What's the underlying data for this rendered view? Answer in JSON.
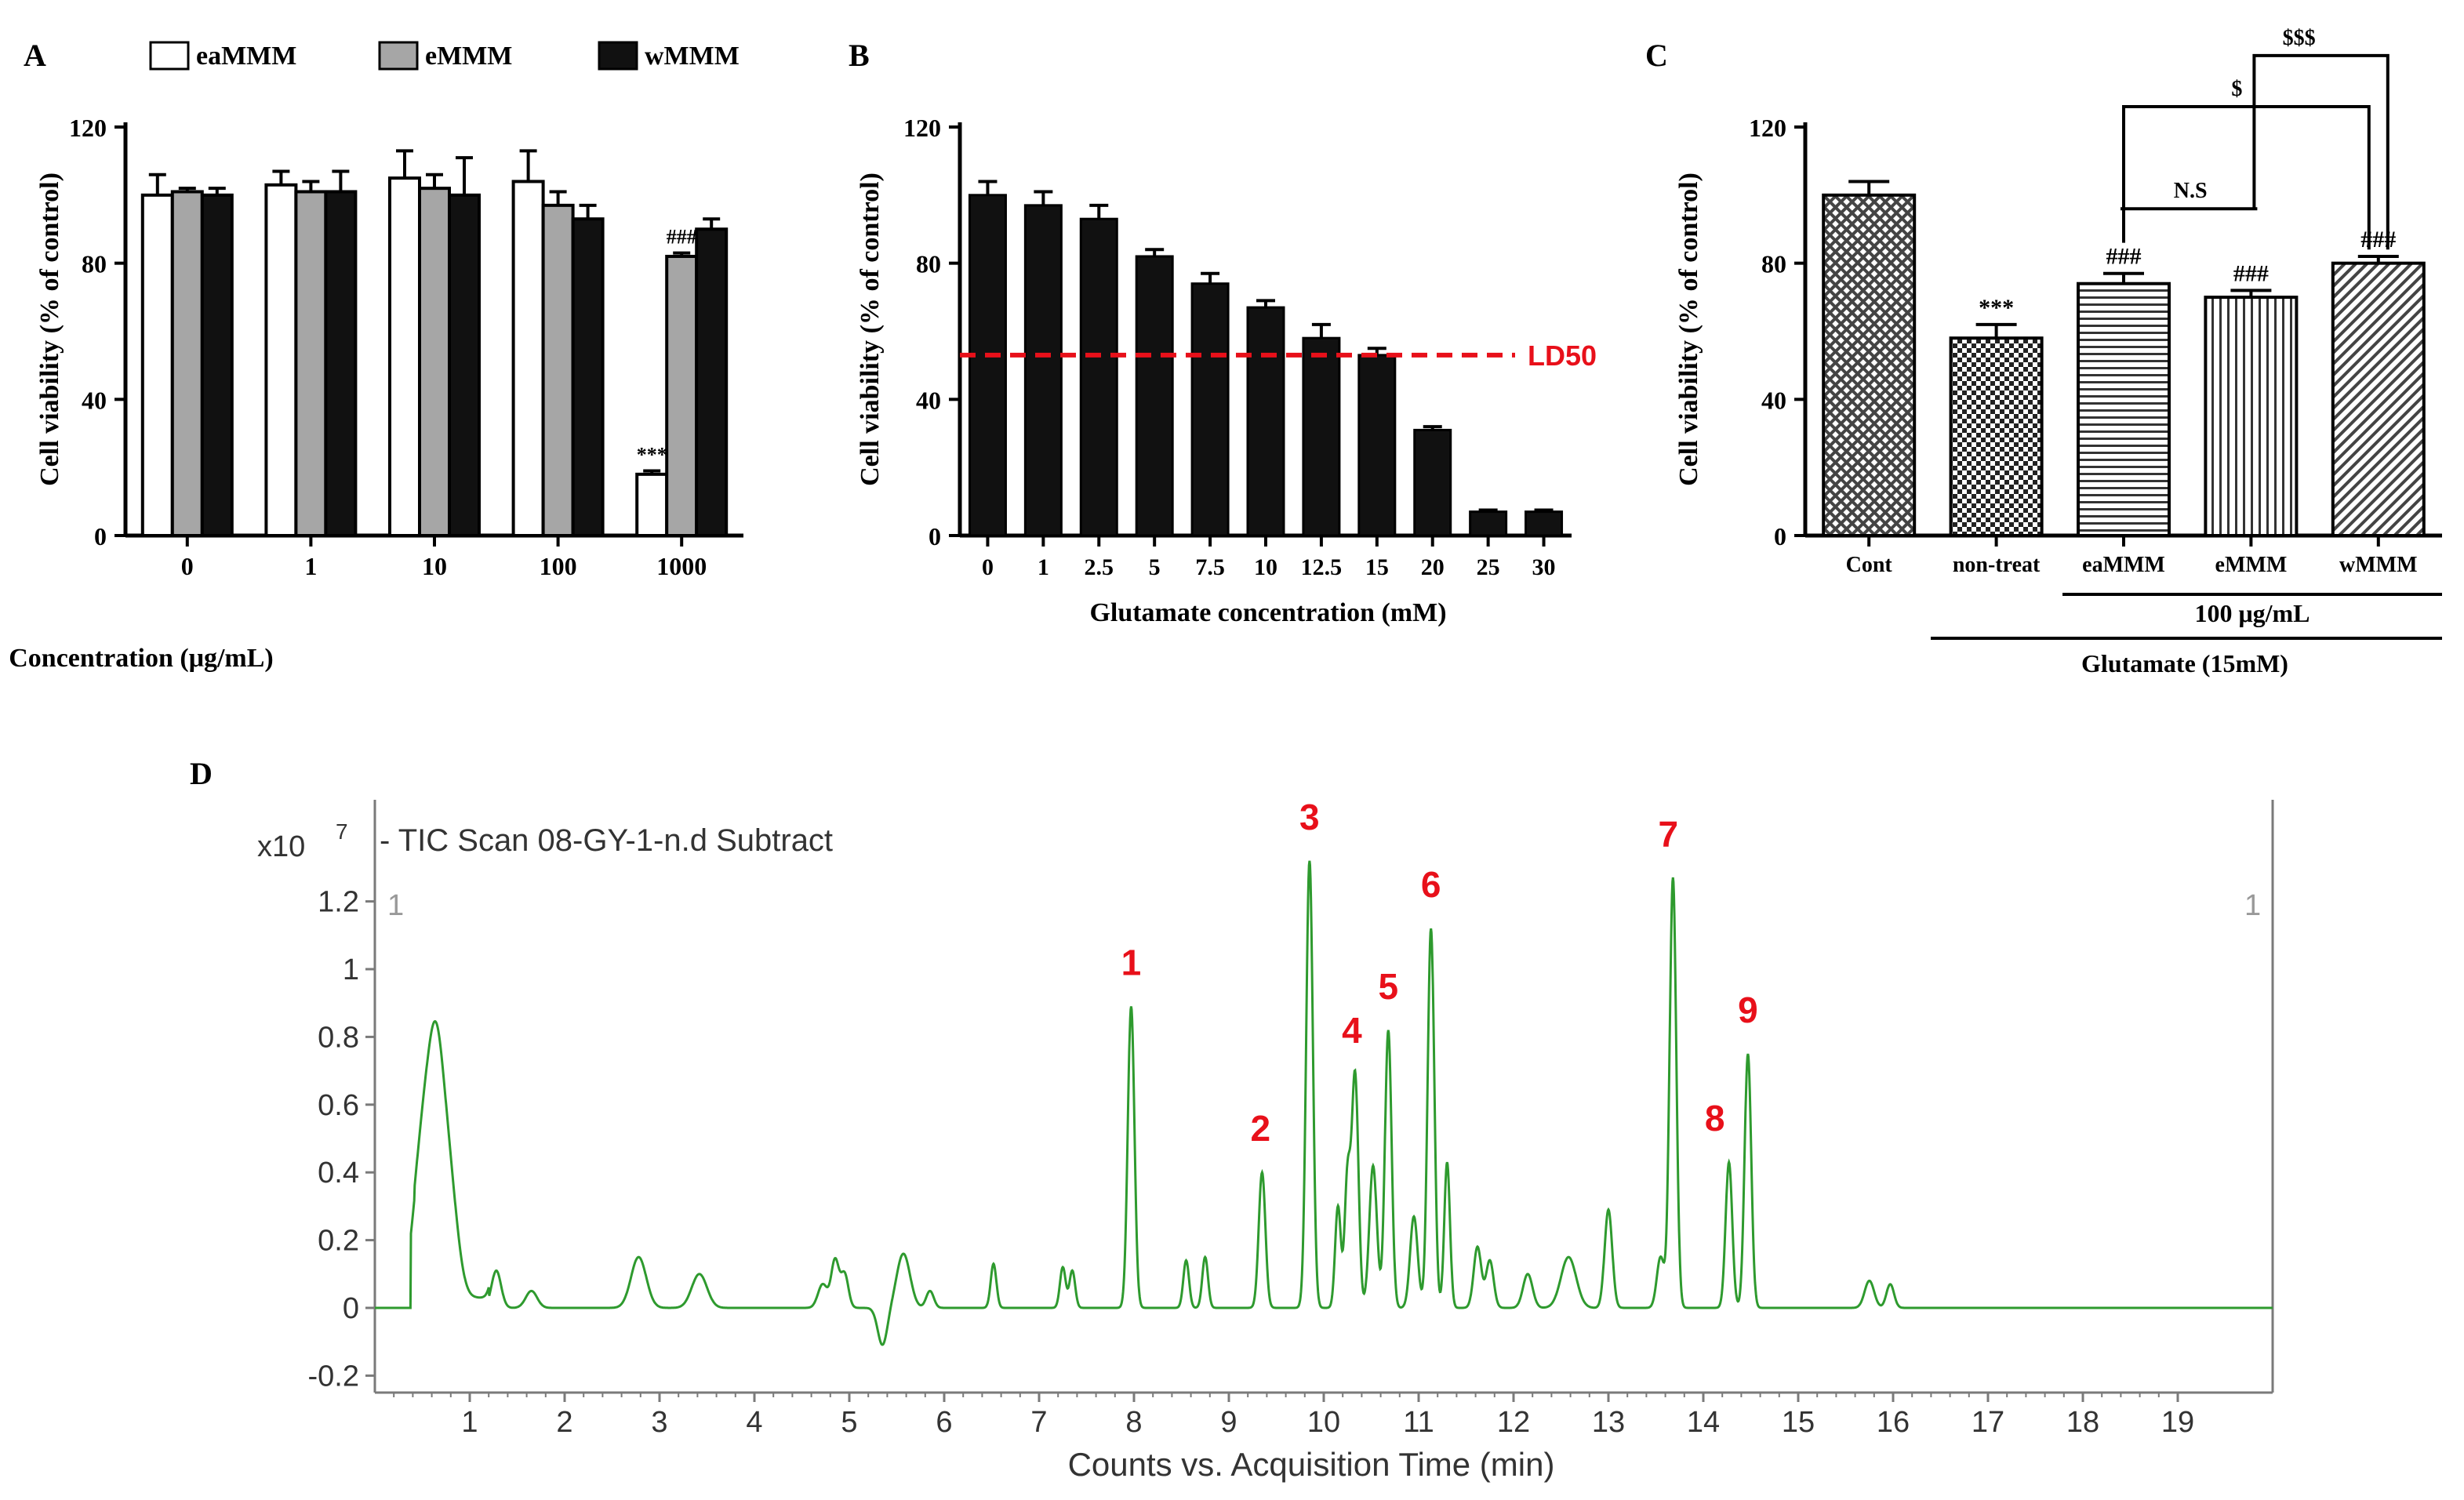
{
  "colors": {
    "white_bar": "#ffffff",
    "gray_bar": "#a6a6a6",
    "black_bar": "#111111",
    "axis": "#000000",
    "ld50": "#e8101a",
    "trace": "#2e9a2e",
    "peak_label": "#e8101a",
    "frame": "#7a7a7a"
  },
  "chart_data": [
    {
      "panel": "A",
      "type": "bar",
      "panel_label": "A",
      "categories": [
        "0",
        "1",
        "10",
        "100",
        "1000"
      ],
      "series": [
        {
          "name": "eaMMM",
          "values": [
            100,
            103,
            105,
            104,
            18
          ],
          "errors": [
            6,
            4,
            8,
            9,
            1
          ]
        },
        {
          "name": "eMMM",
          "values": [
            101,
            101,
            102,
            97,
            82
          ],
          "errors": [
            1,
            3,
            4,
            4,
            1
          ]
        },
        {
          "name": "wMMM",
          "values": [
            100,
            101,
            100,
            93,
            90
          ],
          "errors": [
            2,
            6,
            11,
            4,
            3
          ]
        }
      ],
      "annotations": [
        {
          "category": "1000",
          "series": "eaMMM",
          "text": "***"
        },
        {
          "category": "1000",
          "series": "eMMM",
          "text": "###"
        }
      ],
      "xlabel": "Concentration (μg/mL)",
      "ylabel": "Cell viability  (% of control)",
      "ylim": [
        0,
        120
      ],
      "yticks": [
        "0",
        "40",
        "80",
        "120"
      ],
      "legend": [
        "eaMMM",
        "eMMM",
        "wMMM"
      ]
    },
    {
      "panel": "B",
      "type": "bar",
      "panel_label": "B",
      "categories": [
        "0",
        "1",
        "2.5",
        "5",
        "7.5",
        "10",
        "12.5",
        "15",
        "20",
        "25",
        "30"
      ],
      "values": [
        100,
        97,
        93,
        82,
        74,
        67,
        58,
        53,
        31,
        7,
        7
      ],
      "errors": [
        4,
        4,
        4,
        2,
        3,
        2,
        4,
        2,
        1,
        0.5,
        0.5
      ],
      "reference_line": {
        "value": 53,
        "label": "LD50"
      },
      "xlabel": "Glutamate concentration (mM)",
      "ylabel": "Cell viability  (% of control)",
      "ylim": [
        0,
        120
      ],
      "yticks": [
        "0",
        "40",
        "80",
        "120"
      ]
    },
    {
      "panel": "C",
      "type": "bar",
      "panel_label": "C",
      "categories": [
        "Cont",
        "non-treat",
        "eaMMM",
        "eMMM",
        "wMMM"
      ],
      "values": [
        100,
        58,
        74,
        70,
        80
      ],
      "errors": [
        4,
        4,
        3,
        2,
        2
      ],
      "annotations": [
        {
          "category": "non-treat",
          "text": "***"
        },
        {
          "category": "eaMMM",
          "text": "###"
        },
        {
          "category": "eMMM",
          "text": "###"
        },
        {
          "category": "wMMM",
          "text": "###"
        }
      ],
      "comparisons": [
        {
          "from": "eaMMM",
          "to": "eMMM",
          "text": "N.S"
        },
        {
          "from": "eaMMM",
          "to": "wMMM",
          "text": "$"
        },
        {
          "from": "eMMM",
          "to": "wMMM",
          "text": "$$$"
        }
      ],
      "group_labels": {
        "dose": "100 μg/mL",
        "treatment": "Glutamate (15mM)"
      },
      "ylabel": "Cell viability  (% of control)",
      "ylim": [
        0,
        120
      ],
      "yticks": [
        "0",
        "40",
        "80",
        "120"
      ]
    },
    {
      "panel": "D",
      "type": "line",
      "panel_label": "D",
      "title": "- TIC Scan 08-GY-1-n.d  Subtract",
      "y_multiplier_base": "x10",
      "y_multiplier_exp": "7",
      "corner_label": "1",
      "xlabel": "Counts vs. Acquisition Time (min)",
      "xlim": [
        0,
        20
      ],
      "ylim": [
        -0.25,
        1.5
      ],
      "xticks": [
        "1",
        "2",
        "3",
        "4",
        "5",
        "6",
        "7",
        "8",
        "9",
        "10",
        "11",
        "12",
        "13",
        "14",
        "15",
        "16",
        "17",
        "18",
        "19"
      ],
      "yticks": [
        "-0.2",
        "0",
        "0.2",
        "0.4",
        "0.6",
        "0.8",
        "1",
        "1.2"
      ],
      "peaks": [
        {
          "label": "1",
          "x": 7.97,
          "y": 0.89
        },
        {
          "label": "2",
          "x": 9.35,
          "y": 0.4
        },
        {
          "label": "3",
          "x": 9.85,
          "y": 1.32
        },
        {
          "label": "4",
          "x": 10.33,
          "y": 0.69
        },
        {
          "label": "5",
          "x": 10.68,
          "y": 0.82
        },
        {
          "label": "6",
          "x": 11.13,
          "y": 1.12
        },
        {
          "label": "7",
          "x": 13.68,
          "y": 1.27
        },
        {
          "label": "8",
          "x": 14.27,
          "y": 0.43
        },
        {
          "label": "9",
          "x": 14.47,
          "y": 0.75
        }
      ],
      "minor_peaks": [
        {
          "x": 0.52,
          "y": 0.49,
          "w": 0.11
        },
        {
          "x": 0.65,
          "y": 0.45,
          "w": 0.08
        },
        {
          "x": 0.78,
          "y": 0.33,
          "w": 0.09
        },
        {
          "x": 1.28,
          "y": 0.11,
          "w": 0.05
        },
        {
          "x": 1.65,
          "y": 0.05,
          "w": 0.06
        },
        {
          "x": 2.78,
          "y": 0.15,
          "w": 0.08
        },
        {
          "x": 3.42,
          "y": 0.1,
          "w": 0.08
        },
        {
          "x": 4.72,
          "y": 0.07,
          "w": 0.05
        },
        {
          "x": 4.85,
          "y": 0.14,
          "w": 0.04
        },
        {
          "x": 4.95,
          "y": 0.1,
          "w": 0.04
        },
        {
          "x": 5.35,
          "y": -0.11,
          "w": 0.05
        },
        {
          "x": 5.57,
          "y": 0.16,
          "w": 0.07
        },
        {
          "x": 5.85,
          "y": 0.05,
          "w": 0.04
        },
        {
          "x": 6.52,
          "y": 0.13,
          "w": 0.03
        },
        {
          "x": 7.25,
          "y": 0.12,
          "w": 0.03
        },
        {
          "x": 7.35,
          "y": 0.11,
          "w": 0.03
        },
        {
          "x": 8.55,
          "y": 0.14,
          "w": 0.03
        },
        {
          "x": 8.75,
          "y": 0.15,
          "w": 0.03
        },
        {
          "x": 10.15,
          "y": 0.3,
          "w": 0.03
        },
        {
          "x": 10.25,
          "y": 0.38,
          "w": 0.03
        },
        {
          "x": 10.52,
          "y": 0.42,
          "w": 0.04
        },
        {
          "x": 10.95,
          "y": 0.27,
          "w": 0.04
        },
        {
          "x": 11.3,
          "y": 0.43,
          "w": 0.03
        },
        {
          "x": 11.62,
          "y": 0.18,
          "w": 0.04
        },
        {
          "x": 11.75,
          "y": 0.14,
          "w": 0.04
        },
        {
          "x": 12.15,
          "y": 0.1,
          "w": 0.05
        },
        {
          "x": 12.58,
          "y": 0.15,
          "w": 0.08
        },
        {
          "x": 13.0,
          "y": 0.29,
          "w": 0.04
        },
        {
          "x": 13.55,
          "y": 0.15,
          "w": 0.04
        },
        {
          "x": 15.75,
          "y": 0.08,
          "w": 0.05
        },
        {
          "x": 15.97,
          "y": 0.07,
          "w": 0.04
        }
      ]
    }
  ]
}
